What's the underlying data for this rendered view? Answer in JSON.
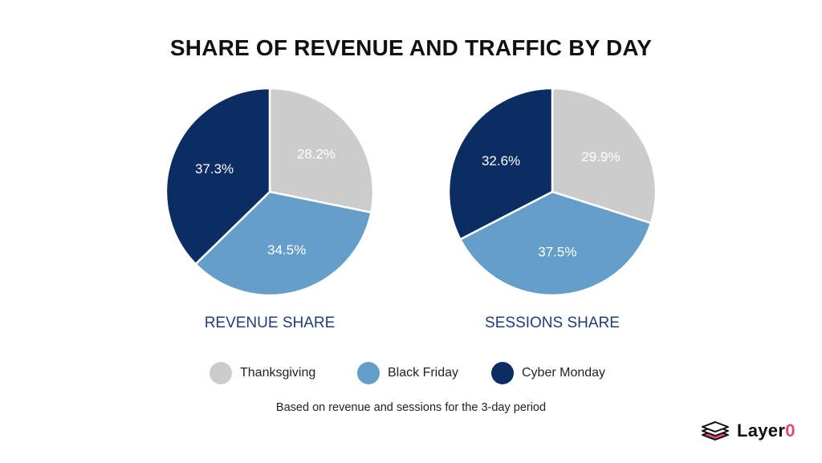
{
  "title": "SHARE OF REVENUE AND TRAFFIC BY DAY",
  "colors": {
    "Thanksgiving": "#cccccc",
    "Black Friday": "#649ec9",
    "Cyber Monday": "#0b2d63",
    "caption": "#1f3f73"
  },
  "legend": [
    {
      "label": "Thanksgiving",
      "color": "#cccccc"
    },
    {
      "label": "Black Friday",
      "color": "#649ec9"
    },
    {
      "label": "Cyber Monday",
      "color": "#0b2d63"
    }
  ],
  "footnote": "Based on revenue and sessions for the 3-day period",
  "brand": {
    "name_main": "Layer",
    "name_accent": "0"
  },
  "chart_data": [
    {
      "type": "pie",
      "title": "REVENUE SHARE",
      "categories": [
        "Thanksgiving",
        "Black Friday",
        "Cyber Monday"
      ],
      "values": [
        28.2,
        34.5,
        37.3
      ],
      "labels": [
        "28.2%",
        "34.5%",
        "37.3%"
      ]
    },
    {
      "type": "pie",
      "title": "SESSIONS SHARE",
      "categories": [
        "Thanksgiving",
        "Black Friday",
        "Cyber Monday"
      ],
      "values": [
        29.9,
        37.5,
        32.6
      ],
      "labels": [
        "29.9%",
        "37.5%",
        "32.6%"
      ]
    }
  ]
}
